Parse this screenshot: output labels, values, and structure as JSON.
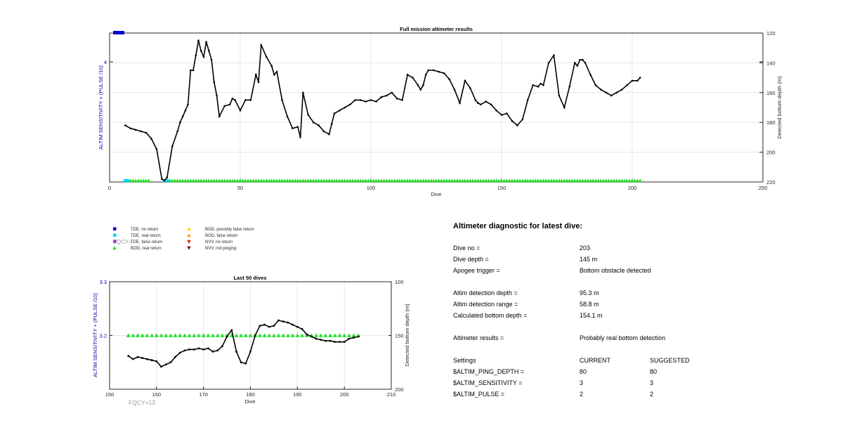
{
  "colors": {
    "altim_axis": "#0000b4",
    "line": "#000000",
    "tde_no_return": "#0000cc",
    "tde_real_return": "#00d7ff",
    "tde_false_return": "#9a26c9",
    "bod_real_return": "#22e02a",
    "bod_possibly_false": "#ffd700",
    "bod_false_return": "#ff9a00",
    "nvv_no_return": "#dd2200",
    "nvv_not_pinging": "#7a0a0a",
    "fqcy_text": "#9a9a9a"
  },
  "chart_data": [
    {
      "type": "line",
      "title": "Full mission altimeter results",
      "xlabel": "Dive",
      "ylabel_left": "ALTIM SENSITIVITY + (PULSE /10)",
      "ylabel_right": "Detected bottom depth (m)",
      "xlim": [
        0,
        250
      ],
      "xticks": [
        0,
        50,
        100,
        150,
        200,
        250
      ],
      "ylim_left_label": "4",
      "ylim_right": [
        120,
        220
      ],
      "yticks_right": [
        120,
        140,
        160,
        180,
        200,
        220
      ],
      "grid": true,
      "series": [
        {
          "marker": "line-dot",
          "x": [
            6,
            8,
            10,
            12,
            14,
            16,
            18,
            20,
            21,
            22,
            24,
            26,
            27,
            28,
            29,
            30,
            31,
            32,
            33,
            34,
            35,
            36,
            37,
            38,
            39,
            40,
            41,
            42,
            44,
            46,
            47,
            48,
            50,
            52,
            54,
            56,
            57,
            58,
            60,
            62,
            63,
            64,
            66,
            68,
            70,
            72,
            73,
            74,
            76,
            78,
            80,
            82,
            84,
            85,
            86,
            88,
            90,
            92,
            94,
            96,
            98,
            100,
            102,
            104,
            106,
            108,
            110,
            112,
            114,
            116,
            118,
            119,
            120,
            121,
            122,
            124,
            126,
            128,
            130,
            132,
            134,
            136,
            138,
            140,
            141,
            142,
            144,
            146,
            148,
            150,
            152,
            154,
            156,
            158,
            160,
            162,
            164,
            165,
            166,
            168,
            170,
            172,
            174,
            176,
            178,
            179,
            180,
            181,
            182,
            184,
            186,
            188,
            190,
            192,
            194,
            196,
            198,
            200,
            202,
            203
          ],
          "y": [
            182,
            184,
            185,
            186,
            187,
            191,
            198,
            218,
            219,
            217,
            196,
            186,
            180,
            176,
            172,
            168,
            145,
            145,
            135,
            125,
            132,
            136,
            126,
            132,
            138,
            153,
            162,
            176,
            169,
            168,
            164,
            165,
            172,
            165,
            165,
            148,
            153,
            128,
            136,
            142,
            148,
            146,
            165,
            176,
            184,
            183,
            190,
            160,
            175,
            180,
            182,
            186,
            188,
            181,
            174,
            172,
            170,
            168,
            165,
            165,
            166,
            165,
            166,
            163,
            162,
            160,
            164,
            165,
            148,
            150,
            155,
            158,
            155,
            148,
            145,
            145,
            146,
            147,
            151,
            158,
            167,
            152,
            157,
            165,
            167,
            168,
            166,
            168,
            172,
            175,
            174,
            179,
            182,
            178,
            165,
            155,
            156,
            154,
            155,
            140,
            135,
            162,
            170,
            156,
            140,
            142,
            138,
            138,
            140,
            148,
            155,
            158,
            160,
            162,
            160,
            158,
            155,
            152,
            152,
            150
          ],
          "bod_markers_x_range": [
            7,
            203
          ],
          "tde_markers": [
            {
              "x": [
                6,
                7,
                21,
                22
              ],
              "kind": "real return"
            }
          ]
        }
      ]
    },
    {
      "type": "line",
      "title": "Last 50 dives",
      "xlabel": "Dive",
      "ylabel_left": "ALTIM SENSITIVITY + (PULSE /10)",
      "ylabel_right": "Detected bottom depth (m)",
      "xlim": [
        150,
        210
      ],
      "xticks": [
        150,
        160,
        170,
        180,
        190,
        200,
        210
      ],
      "yticks_left": [
        "3.3",
        "3.2"
      ],
      "ylim_right": [
        100,
        200
      ],
      "yticks_right": [
        100,
        150,
        200
      ],
      "grid": true,
      "series": [
        {
          "x": [
            154,
            155,
            156,
            157,
            158,
            159,
            160,
            161,
            162,
            163,
            164,
            165,
            166,
            167,
            168,
            169,
            170,
            171,
            172,
            173,
            174,
            175,
            176,
            177,
            178,
            179,
            180,
            181,
            182,
            183,
            184,
            185,
            186,
            187,
            188,
            189,
            190,
            191,
            192,
            193,
            194,
            195,
            196,
            197,
            198,
            199,
            200,
            201,
            202,
            203
          ],
          "y": [
            169,
            172,
            170,
            171,
            172,
            173,
            174,
            179,
            177,
            175,
            170,
            166,
            164,
            163,
            163,
            162,
            163,
            162,
            165,
            164,
            160,
            151,
            145,
            165,
            175,
            176,
            165,
            150,
            141,
            140,
            142,
            141,
            136,
            137,
            138,
            140,
            142,
            144,
            149,
            151,
            153,
            154,
            155,
            155,
            156,
            156,
            156,
            153,
            152,
            151
          ],
          "bod_markers_x": [
            154,
            155,
            156,
            157,
            158,
            159,
            160,
            161,
            162,
            163,
            164,
            165,
            166,
            167,
            168,
            169,
            170,
            171,
            172,
            173,
            174,
            175,
            176,
            177,
            178,
            179,
            180,
            181,
            182,
            183,
            184,
            185,
            186,
            187,
            188,
            189,
            190,
            191,
            192,
            193,
            194,
            195,
            196,
            197,
            198,
            199,
            200,
            201,
            202,
            203
          ]
        }
      ]
    }
  ],
  "legend": {
    "items": [
      {
        "label": "TDE, no return",
        "color_key": "tde_no_return",
        "marker": "square"
      },
      {
        "label": "TDE, real return",
        "color_key": "tde_real_return",
        "marker": "square"
      },
      {
        "label": "TDE, false return",
        "color_key": "tde_false_return",
        "marker": "square"
      },
      {
        "label": "BOD, real return",
        "color_key": "bod_real_return",
        "marker": "triangle-up"
      },
      {
        "label": "BOD, possibly false return",
        "color_key": "bod_possibly_false",
        "marker": "triangle-up"
      },
      {
        "label": "BOD, false return",
        "color_key": "bod_false_return",
        "marker": "triangle-up"
      },
      {
        "label": "NVV, no return",
        "color_key": "nvv_no_return",
        "marker": "triangle-down"
      },
      {
        "label": "NVV, not pinging",
        "color_key": "nvv_not_pinging",
        "marker": "triangle-down"
      }
    ],
    "fqcy_overlap": "FQCY="
  },
  "fqcy_label": "FQCY=13",
  "diagnostic": {
    "title": "Altimeter diagnostic for latest dive:",
    "rows": [
      {
        "label": "Dive no =",
        "value": "203"
      },
      {
        "label": "Dive depth =",
        "value": "145 m"
      },
      {
        "label": "Apogee trigger =",
        "value": "Bottom obstacle detected"
      },
      {
        "label": "Altim detection depth =",
        "value": "95.3 m"
      },
      {
        "label": "Altim detection range =",
        "value": "58.8 m"
      },
      {
        "label": "Calculated bottom depth =",
        "value": "154.1 m"
      },
      {
        "label": "Altimeter results =",
        "value": "Probably real bottom detection"
      }
    ],
    "settings": {
      "header": {
        "label": "Settings",
        "current": "CURRENT",
        "suggested": "SUGGESTED"
      },
      "rows": [
        {
          "label": "$ALTIM_PING_DEPTH =",
          "current": "80",
          "suggested": "80"
        },
        {
          "label": "$ALTIM_SENSITIVITY =",
          "current": "3",
          "suggested": "3"
        },
        {
          "label": "$ALTIM_PULSE =",
          "current": "2",
          "suggested": "2"
        }
      ]
    }
  }
}
